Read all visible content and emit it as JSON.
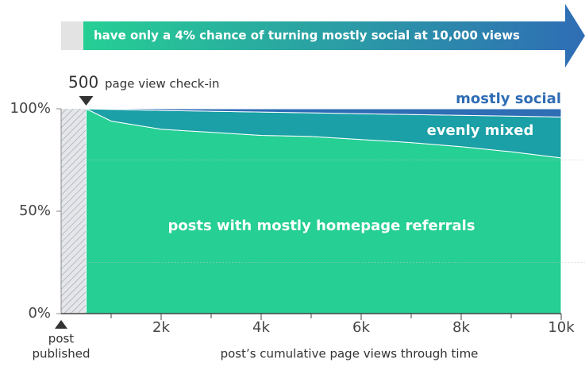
{
  "chart_data": {
    "type": "stacked_area",
    "banner": "have only a 4% chance of turning mostly social at 10,000 views",
    "checkin": {
      "value": 500,
      "text": "page view check-in"
    },
    "published": [
      "post",
      "published"
    ],
    "x_label": "post’s cumulative page views through time",
    "x": [
      500,
      1000,
      2000,
      3000,
      4000,
      5000,
      6000,
      7000,
      8000,
      9000,
      10000
    ],
    "series": [
      {
        "name": "posts with mostly homepage referrals",
        "color": "#26cf94",
        "values": [
          100,
          94,
          90,
          88.5,
          87,
          86.5,
          85,
          83.5,
          81.5,
          79,
          76
        ]
      },
      {
        "name": "evenly mixed",
        "color": "#1aa0a6",
        "values": [
          0,
          5.7,
          9.2,
          10.3,
          11.4,
          11.5,
          12.6,
          13.7,
          15.3,
          17.4,
          20
        ]
      },
      {
        "name": "mostly social",
        "color": "#2f6db5",
        "values": [
          0,
          0.3,
          0.8,
          1.2,
          1.6,
          2,
          2.4,
          2.8,
          3.2,
          3.6,
          4
        ]
      }
    ],
    "xlim": [
      0,
      10000
    ],
    "xticks": [
      {
        "value": 2000,
        "label": "2k"
      },
      {
        "value": 4000,
        "label": "4k"
      },
      {
        "value": 6000,
        "label": "6k"
      },
      {
        "value": 8000,
        "label": "8k"
      },
      {
        "value": 10000,
        "label": "10k"
      }
    ],
    "minor_xticks": [
      1000,
      3000,
      5000,
      7000,
      9000
    ],
    "ylim": [
      0,
      100
    ],
    "yticks": [
      {
        "value": 0,
        "label": "0%"
      },
      {
        "value": 50,
        "label": "50%"
      },
      {
        "value": 100,
        "label": "100%"
      }
    ],
    "minor_yticks": [
      25,
      75
    ]
  }
}
